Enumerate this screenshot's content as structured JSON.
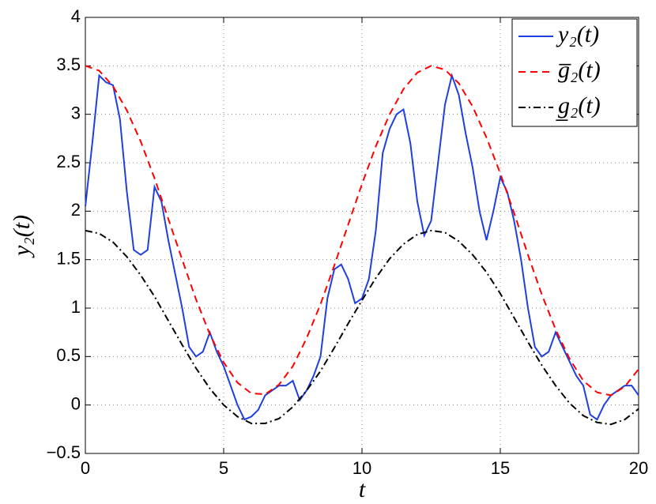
{
  "chart_data": {
    "type": "line",
    "xlabel": "t",
    "ylabel": "y₂(t)",
    "x": [
      0,
      0.5,
      1,
      1.5,
      2,
      2.5,
      3,
      3.5,
      4,
      4.5,
      5,
      5.5,
      6,
      6.5,
      7,
      7.5,
      8,
      8.5,
      9,
      9.5,
      10,
      10.5,
      11,
      11.5,
      12,
      12.5,
      13,
      13.5,
      14,
      14.5,
      15,
      15.5,
      16,
      16.5,
      17,
      17.5,
      18,
      18.5,
      19,
      19.5,
      20
    ],
    "series": [
      {
        "name": "y₂(t)",
        "color": "#1f3fe0",
        "style": "solid",
        "x": [
          0,
          0.25,
          0.5,
          0.75,
          1,
          1.25,
          1.5,
          1.75,
          2,
          2.25,
          2.5,
          2.75,
          3,
          3.25,
          3.5,
          3.75,
          4,
          4.25,
          4.5,
          4.75,
          5,
          5.25,
          5.5,
          5.75,
          6,
          6.25,
          6.5,
          6.75,
          7,
          7.25,
          7.5,
          7.75,
          8,
          8.25,
          8.5,
          8.75,
          9,
          9.25,
          9.5,
          9.75,
          10,
          10.25,
          10.5,
          10.75,
          11,
          11.25,
          11.5,
          11.75,
          12,
          12.25,
          12.5,
          12.75,
          13,
          13.25,
          13.5,
          13.75,
          14,
          14.25,
          14.5,
          14.75,
          15,
          15.25,
          15.5,
          15.75,
          16,
          16.25,
          16.5,
          16.75,
          17,
          17.25,
          17.5,
          17.75,
          18,
          18.25,
          18.5,
          18.75,
          19,
          19.25,
          19.5,
          19.75,
          20
        ],
        "values": [
          2.05,
          2.7,
          3.4,
          3.33,
          3.3,
          2.95,
          2.2,
          1.6,
          1.55,
          1.6,
          2.25,
          2.1,
          1.7,
          1.35,
          1.0,
          0.6,
          0.5,
          0.55,
          0.75,
          0.55,
          0.4,
          0.2,
          0.0,
          -0.15,
          -0.12,
          -0.05,
          0.1,
          0.15,
          0.2,
          0.2,
          0.25,
          0.05,
          0.15,
          0.3,
          0.5,
          1.1,
          1.4,
          1.45,
          1.3,
          1.05,
          1.1,
          1.3,
          1.8,
          2.6,
          2.85,
          3.0,
          3.05,
          2.7,
          2.1,
          1.75,
          1.9,
          2.5,
          3.1,
          3.4,
          3.2,
          2.8,
          2.45,
          2.0,
          1.7,
          2.0,
          2.35,
          2.2,
          1.9,
          1.5,
          1.0,
          0.6,
          0.5,
          0.55,
          0.75,
          0.6,
          0.45,
          0.3,
          0.2,
          -0.1,
          -0.15,
          0.0,
          0.1,
          0.15,
          0.2,
          0.2,
          0.1
        ]
      },
      {
        "name": "g̅₂(t)",
        "color": "#ff0000",
        "style": "dashed",
        "values": [
          3.5,
          3.45,
          3.29,
          3.04,
          2.72,
          2.34,
          1.92,
          1.5,
          1.09,
          0.73,
          0.44,
          0.23,
          0.12,
          0.11,
          0.21,
          0.4,
          0.69,
          1.04,
          1.44,
          1.86,
          2.28,
          2.67,
          3.0,
          3.26,
          3.43,
          3.5,
          3.46,
          3.32,
          3.08,
          2.76,
          2.39,
          1.98,
          1.55,
          1.14,
          0.78,
          0.48,
          0.25,
          0.13,
          0.1,
          0.19,
          0.37
        ]
      },
      {
        "name": "g̲₂(t)",
        "color": "#000000",
        "style": "dashdot",
        "values": [
          1.8,
          1.77,
          1.68,
          1.53,
          1.34,
          1.12,
          0.87,
          0.62,
          0.38,
          0.17,
          0.0,
          -0.12,
          -0.19,
          -0.19,
          -0.14,
          -0.02,
          0.15,
          0.35,
          0.59,
          0.84,
          1.08,
          1.31,
          1.51,
          1.66,
          1.76,
          1.8,
          1.78,
          1.69,
          1.55,
          1.37,
          1.15,
          0.9,
          0.65,
          0.41,
          0.2,
          0.02,
          -0.11,
          -0.18,
          -0.2,
          -0.15,
          -0.04
        ]
      }
    ],
    "xlim": [
      0,
      20
    ],
    "xticks": [
      0,
      5,
      10,
      15,
      20
    ],
    "ylim": [
      -0.5,
      4
    ],
    "yticks": [
      {
        "value": -0.5,
        "label": "−0.5"
      },
      0,
      0.5,
      1,
      1.5,
      2,
      2.5,
      3,
      3.5,
      4
    ],
    "grid": true,
    "legend": "upper right"
  }
}
